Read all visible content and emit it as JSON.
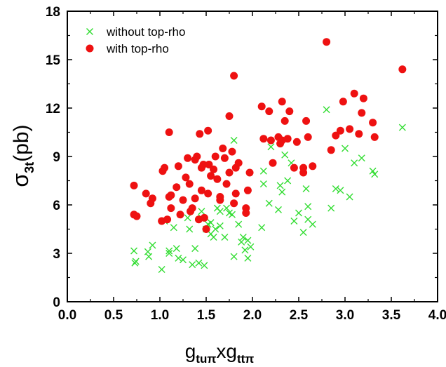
{
  "chart_data": {
    "type": "scatter",
    "xlabel": {
      "base": "g",
      "sub1": "tuπ",
      "mid": "xg",
      "sub2": "ttπ"
    },
    "ylabel": {
      "base": "σ",
      "sub": "3t",
      "unit": "(pb)"
    },
    "xlim": [
      0.0,
      4.0
    ],
    "ylim": [
      0,
      18
    ],
    "xticks": [
      "0.0",
      "0.5",
      "1.0",
      "1.5",
      "2.0",
      "2.5",
      "3.0",
      "3.5",
      "4.0"
    ],
    "yticks": [
      "0",
      "3",
      "6",
      "9",
      "12",
      "15",
      "18"
    ],
    "legend_position": "top-left",
    "series": [
      {
        "name": "without top-rho",
        "marker": "x",
        "color": "#33dd33",
        "points": [
          [
            0.72,
            3.15
          ],
          [
            0.73,
            2.4
          ],
          [
            0.74,
            2.5
          ],
          [
            0.87,
            3.1
          ],
          [
            0.88,
            2.8
          ],
          [
            0.92,
            3.5
          ],
          [
            1.02,
            2.0
          ],
          [
            1.05,
            5.0
          ],
          [
            1.1,
            3.0
          ],
          [
            1.1,
            3.15
          ],
          [
            1.15,
            4.6
          ],
          [
            1.18,
            3.3
          ],
          [
            1.2,
            2.7
          ],
          [
            1.25,
            2.6
          ],
          [
            1.3,
            5.2
          ],
          [
            1.32,
            4.5
          ],
          [
            1.35,
            2.3
          ],
          [
            1.38,
            3.3
          ],
          [
            1.42,
            2.4
          ],
          [
            1.45,
            5.6
          ],
          [
            1.45,
            5.2
          ],
          [
            1.48,
            2.25
          ],
          [
            1.5,
            4.5
          ],
          [
            1.52,
            4.8
          ],
          [
            1.55,
            4.9
          ],
          [
            1.55,
            4.2
          ],
          [
            1.58,
            4.0
          ],
          [
            1.6,
            4.5
          ],
          [
            1.62,
            5.8
          ],
          [
            1.65,
            5.6
          ],
          [
            1.65,
            4.7
          ],
          [
            1.7,
            4.0
          ],
          [
            1.72,
            5.8
          ],
          [
            1.75,
            5.5
          ],
          [
            1.78,
            5.4
          ],
          [
            1.8,
            10.0
          ],
          [
            1.8,
            2.8
          ],
          [
            1.85,
            4.8
          ],
          [
            1.88,
            3.7
          ],
          [
            1.9,
            4.0
          ],
          [
            1.92,
            3.2
          ],
          [
            1.95,
            2.7
          ],
          [
            1.95,
            3.8
          ],
          [
            1.98,
            3.4
          ],
          [
            2.1,
            4.6
          ],
          [
            2.12,
            7.3
          ],
          [
            2.12,
            8.1
          ],
          [
            2.18,
            6.1
          ],
          [
            2.2,
            9.6
          ],
          [
            2.28,
            5.7
          ],
          [
            2.3,
            7.2
          ],
          [
            2.32,
            6.8
          ],
          [
            2.35,
            9.1
          ],
          [
            2.38,
            7.5
          ],
          [
            2.42,
            8.6
          ],
          [
            2.45,
            5.0
          ],
          [
            2.5,
            5.5
          ],
          [
            2.55,
            4.3
          ],
          [
            2.58,
            7.0
          ],
          [
            2.6,
            5.9
          ],
          [
            2.6,
            5.1
          ],
          [
            2.65,
            4.8
          ],
          [
            2.8,
            11.9
          ],
          [
            2.85,
            5.8
          ],
          [
            2.9,
            7.0
          ],
          [
            2.95,
            6.9
          ],
          [
            3.0,
            9.5
          ],
          [
            3.05,
            6.5
          ],
          [
            3.1,
            8.6
          ],
          [
            3.18,
            8.9
          ],
          [
            3.3,
            8.1
          ],
          [
            3.32,
            7.9
          ],
          [
            3.62,
            10.8
          ]
        ]
      },
      {
        "name": "with top-rho",
        "marker": "circle",
        "color": "#ee1111",
        "points": [
          [
            0.72,
            7.2
          ],
          [
            0.72,
            5.4
          ],
          [
            0.75,
            5.3
          ],
          [
            0.85,
            6.7
          ],
          [
            0.9,
            6.1
          ],
          [
            0.92,
            6.4
          ],
          [
            1.02,
            5.0
          ],
          [
            1.03,
            8.1
          ],
          [
            1.05,
            8.3
          ],
          [
            1.08,
            5.1
          ],
          [
            1.1,
            10.5
          ],
          [
            1.1,
            6.5
          ],
          [
            1.12,
            5.8
          ],
          [
            1.12,
            6.6
          ],
          [
            1.18,
            7.1
          ],
          [
            1.2,
            8.4
          ],
          [
            1.22,
            5.4
          ],
          [
            1.25,
            6.3
          ],
          [
            1.28,
            7.7
          ],
          [
            1.3,
            8.9
          ],
          [
            1.32,
            7.3
          ],
          [
            1.33,
            5.6
          ],
          [
            1.35,
            5.8
          ],
          [
            1.38,
            8.8
          ],
          [
            1.38,
            6.4
          ],
          [
            1.4,
            9.0
          ],
          [
            1.42,
            5.1
          ],
          [
            1.43,
            10.4
          ],
          [
            1.45,
            8.3
          ],
          [
            1.45,
            6.9
          ],
          [
            1.47,
            8.5
          ],
          [
            1.48,
            5.2
          ],
          [
            1.5,
            4.5
          ],
          [
            1.52,
            10.6
          ],
          [
            1.52,
            6.7
          ],
          [
            1.53,
            8.5
          ],
          [
            1.55,
            7.8
          ],
          [
            1.58,
            8.2
          ],
          [
            1.6,
            9.0
          ],
          [
            1.62,
            7.6
          ],
          [
            1.65,
            6.3
          ],
          [
            1.65,
            6.5
          ],
          [
            1.68,
            9.5
          ],
          [
            1.7,
            8.9
          ],
          [
            1.72,
            7.3
          ],
          [
            1.75,
            11.5
          ],
          [
            1.75,
            8.0
          ],
          [
            1.78,
            9.3
          ],
          [
            1.8,
            14.0
          ],
          [
            1.8,
            6.1
          ],
          [
            1.82,
            8.3
          ],
          [
            1.82,
            6.7
          ],
          [
            1.85,
            8.6
          ],
          [
            1.93,
            5.5
          ],
          [
            1.93,
            5.8
          ],
          [
            1.95,
            6.9
          ],
          [
            1.97,
            8.0
          ],
          [
            2.1,
            12.1
          ],
          [
            2.12,
            10.1
          ],
          [
            2.18,
            11.8
          ],
          [
            2.2,
            10.0
          ],
          [
            2.22,
            8.6
          ],
          [
            2.28,
            10.2
          ],
          [
            2.3,
            9.8
          ],
          [
            2.32,
            10.0
          ],
          [
            2.32,
            12.4
          ],
          [
            2.35,
            11.2
          ],
          [
            2.38,
            10.1
          ],
          [
            2.4,
            11.8
          ],
          [
            2.45,
            8.3
          ],
          [
            2.48,
            9.9
          ],
          [
            2.55,
            8.0
          ],
          [
            2.55,
            8.3
          ],
          [
            2.58,
            11.2
          ],
          [
            2.6,
            10.2
          ],
          [
            2.65,
            8.4
          ],
          [
            2.8,
            16.1
          ],
          [
            2.85,
            9.4
          ],
          [
            2.9,
            10.3
          ],
          [
            2.95,
            10.6
          ],
          [
            2.98,
            12.4
          ],
          [
            3.05,
            10.7
          ],
          [
            3.1,
            12.9
          ],
          [
            3.15,
            10.4
          ],
          [
            3.18,
            11.7
          ],
          [
            3.2,
            12.6
          ],
          [
            3.3,
            11.1
          ],
          [
            3.32,
            10.2
          ],
          [
            3.62,
            14.4
          ]
        ]
      }
    ]
  }
}
